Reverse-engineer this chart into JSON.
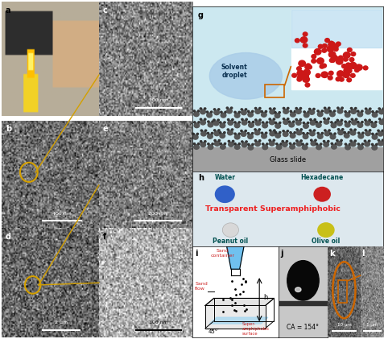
{
  "background_color": "#ffffff",
  "panel_labels": [
    "a",
    "b",
    "c",
    "d",
    "e",
    "f",
    "g",
    "h",
    "i",
    "j",
    "k",
    "l"
  ],
  "scales": {
    "b": "400 nm",
    "c": "100 nm",
    "d": "2 μm",
    "e": "200 nm",
    "f": "100 nm",
    "k": "10 μm",
    "l": "1 μm"
  },
  "colors": {
    "gold": "#d4a000",
    "orange": "#cc6600",
    "red": "#cc2020",
    "dark_teal": "#006060",
    "blue_water": "#2060c0",
    "olive": "#c0b020",
    "peanut": "#d0d0d0",
    "glass_slide": "#a8a8a8",
    "schematic_bg": "#cce8f0",
    "panel_h_bg": "#dde8ee",
    "panel_i_bg": "#f5f5f5",
    "panel_j_bg": "#c8c8c8",
    "funnel_blue": "#60bbee",
    "sem_dark": "#404040",
    "red_text": "#ee2020",
    "teal_text": "#005050"
  }
}
